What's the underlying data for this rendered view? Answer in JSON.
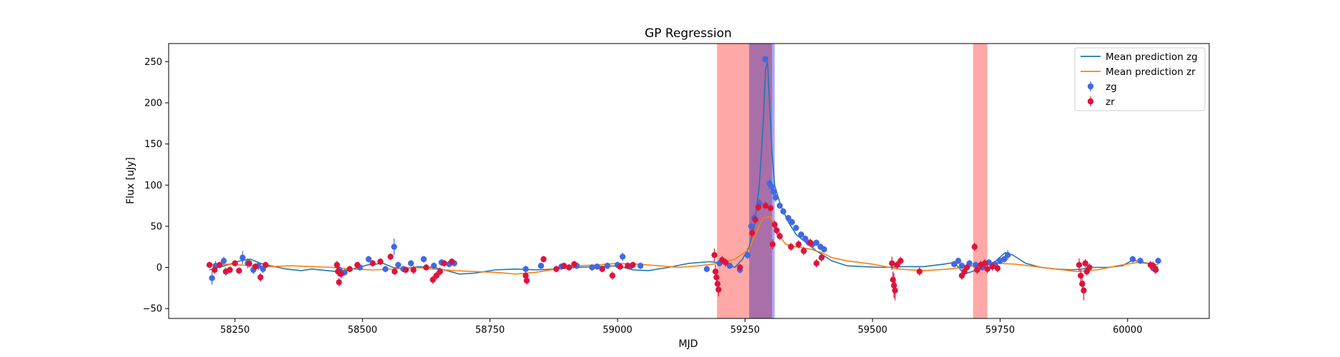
{
  "chart_data": {
    "type": "scatter",
    "title": "GP Regression",
    "xlabel": "MJD",
    "ylabel": "Flux [uJy]",
    "xlim": [
      58120,
      60160
    ],
    "ylim": [
      -62,
      272
    ],
    "xticks": [
      58250,
      58500,
      58750,
      59000,
      59250,
      59500,
      59750,
      60000
    ],
    "yticks": [
      -50,
      0,
      50,
      100,
      150,
      200,
      250
    ],
    "grid": false,
    "legend_position": "top-right",
    "colors": {
      "zg_line": "#1f77b4",
      "zr_line": "#ff7f0e",
      "zg_points": "#4169e1",
      "zr_points": "#dc143c",
      "red_band": "#ff9999",
      "blue_band": "#9999ff"
    },
    "shaded_regions": [
      {
        "x0": 59195,
        "x1": 59258,
        "color": "red"
      },
      {
        "x0": 59258,
        "x1": 59308,
        "color": "blue"
      },
      {
        "x0": 59258,
        "x1": 59303,
        "color": "red"
      },
      {
        "x0": 59697,
        "x1": 59725,
        "color": "red"
      }
    ],
    "legend": [
      {
        "label": "Mean prediction zg",
        "kind": "line",
        "color": "#1f77b4"
      },
      {
        "label": "Mean prediction zr",
        "kind": "line",
        "color": "#ff7f0e"
      },
      {
        "label": "zg",
        "kind": "errorbar",
        "color": "#4169e1"
      },
      {
        "label": "zr",
        "kind": "errorbar",
        "color": "#dc143c"
      }
    ],
    "series": [
      {
        "name": "Mean prediction zg",
        "kind": "line",
        "x": [
          58200,
          58230,
          58260,
          58280,
          58300,
          58320,
          58350,
          58380,
          58400,
          58450,
          58480,
          58510,
          58540,
          58560,
          58580,
          58610,
          58640,
          58660,
          58690,
          58720,
          58760,
          58800,
          58840,
          58880,
          58920,
          58960,
          59000,
          59030,
          59060,
          59100,
          59140,
          59180,
          59210,
          59230,
          59245,
          59258,
          59268,
          59278,
          59286,
          59290,
          59294,
          59298,
          59303,
          59308,
          59320,
          59335,
          59350,
          59370,
          59390,
          59420,
          59450,
          59480,
          59520,
          59560,
          59600,
          59640,
          59660,
          59680,
          59700,
          59720,
          59740,
          59760,
          59775,
          59800,
          59830,
          59860,
          59890,
          59910,
          59930,
          59960,
          59990,
          60010,
          60040,
          60060
        ],
        "y": [
          -3,
          2,
          8,
          10,
          5,
          2,
          -2,
          -4,
          -2,
          -5,
          -2,
          3,
          5,
          0,
          -2,
          1,
          0,
          -3,
          -8,
          -7,
          -3,
          -2,
          -3,
          -2,
          0,
          1,
          2,
          -3,
          -4,
          0,
          5,
          7,
          5,
          0,
          10,
          25,
          50,
          100,
          180,
          240,
          250,
          200,
          140,
          100,
          75,
          55,
          40,
          30,
          20,
          8,
          2,
          1,
          0,
          1,
          1,
          4,
          6,
          -8,
          -4,
          2,
          7,
          18,
          15,
          5,
          0,
          -2,
          -3,
          -2,
          0,
          0,
          2,
          9,
          5,
          0
        ]
      },
      {
        "name": "Mean prediction zr",
        "kind": "line",
        "x": [
          58200,
          58240,
          58280,
          58320,
          58360,
          58400,
          58440,
          58480,
          58520,
          58560,
          58600,
          58640,
          58680,
          58720,
          58760,
          58800,
          58840,
          58880,
          58920,
          58960,
          59000,
          59040,
          59080,
          59120,
          59160,
          59200,
          59230,
          59258,
          59270,
          59285,
          59300,
          59315,
          59330,
          59350,
          59380,
          59400,
          59420,
          59450,
          59500,
          59550,
          59600,
          59650,
          59700,
          59740,
          59780,
          59820,
          59860,
          59900,
          59940,
          59980,
          60020,
          60060
        ],
        "y": [
          3,
          4,
          2,
          1,
          2,
          1,
          0,
          -2,
          -3,
          -2,
          0,
          -2,
          -4,
          -5,
          -6,
          -8,
          -6,
          -2,
          2,
          3,
          5,
          4,
          2,
          0,
          2,
          5,
          10,
          22,
          40,
          60,
          62,
          40,
          28,
          25,
          22,
          18,
          12,
          8,
          4,
          -2,
          -4,
          -2,
          2,
          5,
          4,
          1,
          -2,
          -5,
          -3,
          2,
          6,
          3
        ]
      },
      {
        "name": "zg",
        "kind": "errorbar",
        "x": [
          58205,
          58212,
          58228,
          58265,
          58275,
          58286,
          58296,
          58305,
          58455,
          58465,
          58495,
          58512,
          58545,
          58562,
          58570,
          58580,
          58595,
          58620,
          58640,
          58655,
          58670,
          58680,
          58820,
          58850,
          58890,
          58920,
          58950,
          58960,
          58980,
          59000,
          59010,
          59025,
          59045,
          59175,
          59200,
          59220,
          59240,
          59255,
          59262,
          59268,
          59278,
          59290,
          59298,
          59302,
          59306,
          59310,
          59318,
          59325,
          59335,
          59342,
          59350,
          59360,
          59368,
          59375,
          59382,
          59390,
          59398,
          59405,
          59660,
          59668,
          59675,
          59690,
          59702,
          59715,
          59728,
          59740,
          59750,
          59758,
          59765,
          60010,
          60025,
          60050,
          60060
        ],
        "y": [
          -13,
          2,
          8,
          12,
          5,
          -3,
          2,
          -2,
          -3,
          -6,
          0,
          10,
          -2,
          25,
          3,
          -2,
          5,
          10,
          2,
          6,
          4,
          5,
          -2,
          2,
          1,
          2,
          0,
          1,
          2,
          3,
          13,
          1,
          2,
          -2,
          5,
          2,
          -3,
          15,
          50,
          60,
          78,
          253,
          102,
          98,
          92,
          85,
          75,
          68,
          60,
          55,
          48,
          40,
          35,
          30,
          28,
          30,
          25,
          22,
          4,
          8,
          2,
          5,
          3,
          0,
          6,
          4,
          8,
          10,
          15,
          10,
          8,
          -1,
          8
        ],
        "err": [
          8,
          6,
          5,
          8,
          6,
          5,
          5,
          5,
          4,
          4,
          4,
          4,
          4,
          10,
          4,
          4,
          4,
          4,
          4,
          4,
          4,
          4,
          4,
          4,
          4,
          4,
          4,
          4,
          4,
          4,
          5,
          4,
          4,
          4,
          4,
          4,
          4,
          5,
          5,
          5,
          5,
          4,
          5,
          5,
          5,
          5,
          4,
          4,
          4,
          4,
          4,
          4,
          4,
          4,
          4,
          4,
          4,
          4,
          4,
          4,
          4,
          4,
          4,
          4,
          4,
          4,
          4,
          4,
          6,
          4,
          4,
          4,
          4
        ]
      },
      {
        "name": "zr",
        "kind": "errorbar",
        "x": [
          58200,
          58210,
          58220,
          58232,
          58240,
          58250,
          58258,
          58278,
          58290,
          58300,
          58310,
          58450,
          58452,
          58454,
          58458,
          58475,
          58490,
          58520,
          58535,
          58555,
          58563,
          58585,
          58600,
          58625,
          58638,
          58645,
          58652,
          58660,
          58675,
          58820,
          58822,
          58855,
          58880,
          58895,
          58905,
          58915,
          58970,
          58990,
          59005,
          59020,
          59030,
          59190,
          59192,
          59194,
          59196,
          59198,
          59205,
          59212,
          59240,
          59264,
          59270,
          59276,
          59290,
          59300,
          59304,
          59308,
          59312,
          59318,
          59340,
          59355,
          59365,
          59378,
          59390,
          59400,
          59538,
          59540,
          59542,
          59544,
          59548,
          59555,
          59592,
          59675,
          59680,
          59685,
          59700,
          59705,
          59712,
          59720,
          59725,
          59735,
          59745,
          59905,
          59908,
          59911,
          59914,
          59917,
          59920,
          59925,
          60045,
          60050,
          60055
        ],
        "y": [
          3,
          -3,
          3,
          -5,
          -3,
          5,
          -4,
          5,
          1,
          -12,
          3,
          3,
          -5,
          -18,
          -8,
          -2,
          3,
          5,
          7,
          13,
          -5,
          -3,
          -3,
          0,
          -15,
          -10,
          -5,
          5,
          7,
          -10,
          -16,
          10,
          -2,
          2,
          0,
          4,
          -2,
          -10,
          1,
          2,
          3,
          15,
          -5,
          -12,
          -20,
          -27,
          9,
          6,
          0,
          42,
          58,
          73,
          75,
          72,
          28,
          52,
          45,
          38,
          25,
          28,
          20,
          30,
          5,
          12,
          5,
          -15,
          -22,
          -28,
          3,
          8,
          -5,
          -10,
          -5,
          0,
          25,
          -3,
          3,
          5,
          -2,
          1,
          -1,
          3,
          -10,
          -20,
          -28,
          5,
          -5,
          0,
          3,
          2,
          -3
        ],
        "err": [
          4,
          5,
          4,
          5,
          4,
          4,
          4,
          5,
          4,
          5,
          4,
          5,
          6,
          5,
          5,
          4,
          4,
          4,
          4,
          4,
          4,
          4,
          5,
          4,
          5,
          5,
          5,
          4,
          4,
          5,
          5,
          4,
          4,
          4,
          4,
          4,
          4,
          5,
          4,
          4,
          4,
          8,
          8,
          8,
          10,
          8,
          5,
          5,
          4,
          5,
          5,
          5,
          4,
          4,
          6,
          5,
          5,
          5,
          5,
          5,
          5,
          5,
          5,
          5,
          8,
          10,
          15,
          12,
          5,
          5,
          5,
          5,
          5,
          5,
          5,
          5,
          5,
          5,
          5,
          5,
          5,
          8,
          8,
          10,
          12,
          5,
          5,
          5,
          5,
          5,
          5
        ]
      }
    ]
  }
}
